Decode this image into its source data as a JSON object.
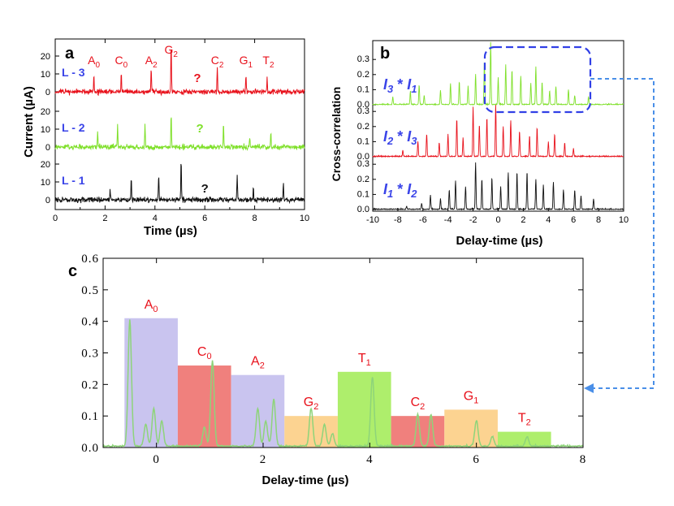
{
  "colors": {
    "red": "#e8111b",
    "green": "#7fe02a",
    "black": "#111111",
    "blue": "#3a44e8",
    "dash": "#4a8fe8",
    "lavender": "#c9c4ef",
    "salmon": "#f0807d",
    "orange": "#fcd391",
    "lime": "#aeee6c",
    "trace_c": "#8ed47a"
  },
  "chart_data": [
    {
      "id": "a",
      "type": "line",
      "panel_label": "a",
      "xlabel": "Time (µs)",
      "ylabel": "Current (µA)",
      "xlim": [
        0,
        10
      ],
      "xticks": [
        "0",
        "2",
        "4",
        "6",
        "8",
        "10"
      ],
      "series": [
        {
          "name": "L - 3",
          "label": "L - 3",
          "color": "red",
          "yticks": [
            "0",
            "10",
            "20"
          ],
          "peaks": [
            [
              1.55,
              9
            ],
            [
              2.65,
              10
            ],
            [
              3.85,
              13
            ],
            [
              4.65,
              28
            ],
            [
              6.5,
              14
            ],
            [
              7.65,
              9
            ],
            [
              8.5,
              8
            ]
          ],
          "annotations": [
            {
              "text": "A",
              "sub": "0",
              "x": 1.55
            },
            {
              "text": "C",
              "sub": "0",
              "x": 2.65
            },
            {
              "text": "A",
              "sub": "2",
              "x": 3.85
            },
            {
              "text": "G",
              "sub": "2",
              "x": 4.65
            },
            {
              "text": "?",
              "sub": "",
              "x": 5.7
            },
            {
              "text": "C",
              "sub": "2",
              "x": 6.5
            },
            {
              "text": "G",
              "sub": "1",
              "x": 7.65
            },
            {
              "text": "T",
              "sub": "2",
              "x": 8.55
            }
          ]
        },
        {
          "name": "L - 2",
          "label": "L - 2",
          "color": "green",
          "yticks": [
            "0",
            "10",
            "20"
          ],
          "peaks": [
            [
              1.7,
              10
            ],
            [
              2.5,
              12
            ],
            [
              3.6,
              12
            ],
            [
              4.65,
              19
            ],
            [
              6.75,
              14
            ],
            [
              7.8,
              6
            ],
            [
              8.65,
              9
            ]
          ],
          "annotations": [
            {
              "text": "?",
              "sub": "",
              "x": 5.8
            }
          ]
        },
        {
          "name": "L - 1",
          "label": "L - 1",
          "color": "black",
          "yticks": [
            "0",
            "10",
            "20"
          ],
          "peaks": [
            [
              2.2,
              6
            ],
            [
              3.05,
              12
            ],
            [
              4.15,
              13
            ],
            [
              5.05,
              22
            ],
            [
              7.3,
              14
            ],
            [
              7.95,
              7
            ],
            [
              9.15,
              9
            ]
          ],
          "annotations": [
            {
              "text": "?",
              "sub": "",
              "x": 6.0
            }
          ]
        }
      ]
    },
    {
      "id": "b",
      "type": "line",
      "panel_label": "b",
      "xlabel": "Delay-time (µs)",
      "ylabel": "Cross-correlation",
      "xlim": [
        -10,
        10
      ],
      "xticks": [
        "-10",
        "-8",
        "-6",
        "-4",
        "-2",
        "0",
        "2",
        "4",
        "6",
        "8",
        "10"
      ],
      "series": [
        {
          "name": "I3 * I1",
          "label_a": "I",
          "sub_a": "3",
          "star": " * ",
          "label_b": "I",
          "sub_b": "1",
          "color": "green",
          "yticks": [
            "0.0",
            "0.1",
            "0.2",
            "0.3"
          ],
          "ylim": [
            0,
            0.38
          ],
          "peaks": [
            [
              -8.4,
              0.05
            ],
            [
              -7.0,
              0.09
            ],
            [
              -6.3,
              0.13
            ],
            [
              -5.9,
              0.06
            ],
            [
              -4.6,
              0.09
            ],
            [
              -3.8,
              0.14
            ],
            [
              -3.1,
              0.15
            ],
            [
              -2.4,
              0.12
            ],
            [
              -1.8,
              0.2
            ],
            [
              -1.1,
              0.29
            ],
            [
              -0.6,
              0.41
            ],
            [
              0.0,
              0.18
            ],
            [
              0.6,
              0.26
            ],
            [
              1.1,
              0.23
            ],
            [
              1.8,
              0.19
            ],
            [
              2.6,
              0.14
            ],
            [
              3.0,
              0.25
            ],
            [
              3.5,
              0.15
            ],
            [
              4.1,
              0.09
            ],
            [
              4.6,
              0.12
            ],
            [
              5.6,
              0.1
            ],
            [
              6.1,
              0.06
            ],
            [
              7.2,
              0.05
            ]
          ]
        },
        {
          "name": "I2 * I3",
          "label_a": "I",
          "sub_a": "2",
          "star": " * ",
          "label_b": "I",
          "sub_b": "3",
          "color": "red",
          "yticks": [
            "0.0",
            "0.1",
            "0.2",
            "0.3"
          ],
          "ylim": [
            0,
            0.38
          ],
          "peaks": [
            [
              -7.6,
              0.04
            ],
            [
              -6.4,
              0.1
            ],
            [
              -5.7,
              0.15
            ],
            [
              -4.7,
              0.09
            ],
            [
              -4.0,
              0.15
            ],
            [
              -3.3,
              0.25
            ],
            [
              -2.8,
              0.12
            ],
            [
              -2.0,
              0.33
            ],
            [
              -1.5,
              0.21
            ],
            [
              -0.9,
              0.26
            ],
            [
              -0.2,
              0.34
            ],
            [
              0.4,
              0.2
            ],
            [
              1.0,
              0.24
            ],
            [
              1.7,
              0.17
            ],
            [
              2.5,
              0.14
            ],
            [
              3.1,
              0.19
            ],
            [
              4.0,
              0.1
            ],
            [
              4.5,
              0.15
            ],
            [
              5.3,
              0.09
            ],
            [
              6.0,
              0.05
            ]
          ]
        },
        {
          "name": "I1 * I2",
          "label_a": "I",
          "sub_a": "1",
          "star": " * ",
          "label_b": "I",
          "sub_b": "2",
          "color": "black",
          "yticks": [
            "0.0",
            "0.1",
            "0.2",
            "0.3"
          ],
          "ylim": [
            0,
            0.38
          ],
          "peaks": [
            [
              -7.3,
              0.02
            ],
            [
              -6.1,
              0.04
            ],
            [
              -5.4,
              0.09
            ],
            [
              -4.6,
              0.07
            ],
            [
              -3.9,
              0.13
            ],
            [
              -3.4,
              0.19
            ],
            [
              -2.6,
              0.15
            ],
            [
              -1.8,
              0.31
            ],
            [
              -1.3,
              0.2
            ],
            [
              -0.5,
              0.21
            ],
            [
              0.2,
              0.15
            ],
            [
              0.8,
              0.24
            ],
            [
              1.5,
              0.25
            ],
            [
              2.3,
              0.25
            ],
            [
              3.0,
              0.2
            ],
            [
              3.6,
              0.16
            ],
            [
              4.4,
              0.18
            ],
            [
              5.2,
              0.13
            ],
            [
              6.1,
              0.13
            ],
            [
              6.6,
              0.09
            ],
            [
              7.6,
              0.07
            ]
          ]
        }
      ]
    },
    {
      "id": "c",
      "type": "bar",
      "panel_label": "c",
      "xlabel": "Delay-time (µs)",
      "ylabel": "",
      "xlim": [
        -1,
        8
      ],
      "ylim": [
        0,
        0.6
      ],
      "xticks": [
        "0",
        "2",
        "4",
        "6",
        "8"
      ],
      "yticks": [
        "0.0",
        "0.1",
        "0.2",
        "0.3",
        "0.4",
        "0.5",
        "0.6"
      ],
      "categories": [
        "A0",
        "C0",
        "A2",
        "G2",
        "T1",
        "C2",
        "G1",
        "T2"
      ],
      "bars": [
        {
          "label": "A",
          "sub": "0",
          "x0": -0.6,
          "x1": 0.4,
          "value": 0.41,
          "color": "lavender"
        },
        {
          "label": "C",
          "sub": "0",
          "x0": 0.4,
          "x1": 1.4,
          "value": 0.26,
          "color": "salmon"
        },
        {
          "label": "A",
          "sub": "2",
          "x0": 1.4,
          "x1": 2.4,
          "value": 0.23,
          "color": "lavender"
        },
        {
          "label": "G",
          "sub": "2",
          "x0": 2.4,
          "x1": 3.4,
          "value": 0.1,
          "color": "orange"
        },
        {
          "label": "T",
          "sub": "1",
          "x0": 3.4,
          "x1": 4.4,
          "value": 0.24,
          "color": "lime"
        },
        {
          "label": "C",
          "sub": "2",
          "x0": 4.4,
          "x1": 5.4,
          "value": 0.1,
          "color": "salmon"
        },
        {
          "label": "G",
          "sub": "1",
          "x0": 5.4,
          "x1": 6.4,
          "value": 0.12,
          "color": "orange"
        },
        {
          "label": "T",
          "sub": "2",
          "x0": 6.4,
          "x1": 7.4,
          "value": 0.05,
          "color": "lime"
        }
      ],
      "trace_peaks": [
        [
          -0.5,
          0.4
        ],
        [
          -0.2,
          0.07
        ],
        [
          -0.05,
          0.12
        ],
        [
          0.1,
          0.08
        ],
        [
          0.9,
          0.06
        ],
        [
          1.05,
          0.27
        ],
        [
          1.9,
          0.12
        ],
        [
          2.05,
          0.08
        ],
        [
          2.2,
          0.15
        ],
        [
          2.9,
          0.12
        ],
        [
          3.15,
          0.07
        ],
        [
          3.3,
          0.04
        ],
        [
          4.05,
          0.22
        ],
        [
          4.9,
          0.1
        ],
        [
          5.15,
          0.1
        ],
        [
          6.0,
          0.08
        ],
        [
          6.3,
          0.03
        ],
        [
          6.95,
          0.03
        ]
      ]
    }
  ]
}
